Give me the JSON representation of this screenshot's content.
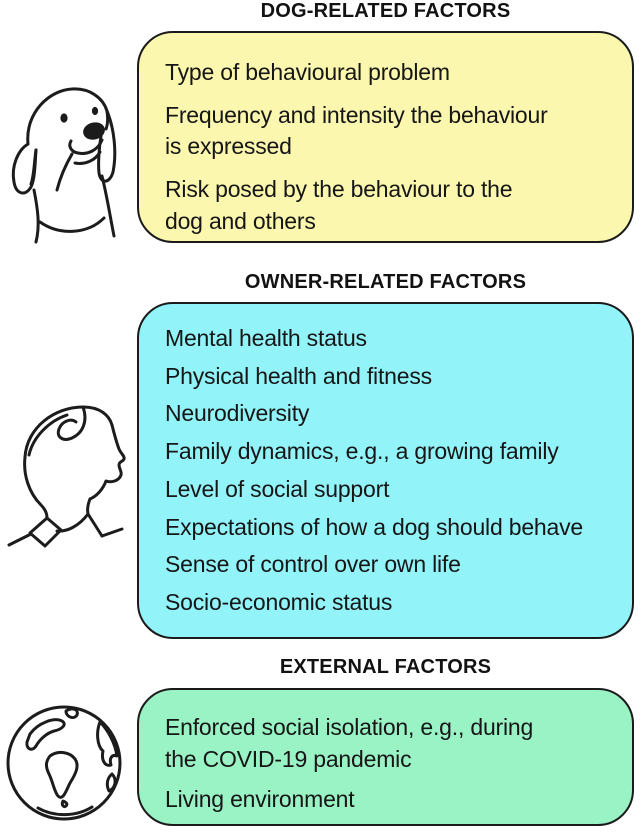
{
  "sections": [
    {
      "title": "DOG-RELATED FACTORS",
      "icon": "dog-icon",
      "box_color": "#FBF7AE",
      "items": [
        "Type of behavioural problem",
        "Frequency and intensity the behaviour\nis expressed",
        "Risk posed by the behaviour to the\ndog and others"
      ]
    },
    {
      "title": "OWNER-RELATED FACTORS",
      "icon": "person-icon",
      "box_color": "#92F3F8",
      "items": [
        "Mental health status",
        "Physical health and fitness",
        "Neurodiversity",
        "Family dynamics, e.g., a growing family",
        "Level of social support",
        "Expectations of how a dog should behave",
        "Sense of control over own life",
        "Socio-economic status"
      ]
    },
    {
      "title": "EXTERNAL FACTORS",
      "icon": "globe-icon",
      "box_color": "#99F3C5",
      "items": [
        "Enforced social isolation, e.g., during\nthe COVID-19 pandemic",
        "Living environment"
      ]
    }
  ],
  "colors": {
    "background": "#FFFFFF",
    "outline": "#1B1B1B",
    "text": "#161616",
    "dog_box": "#FBF7AE",
    "owner_box": "#92F3F8",
    "external_box": "#99F3C5"
  }
}
